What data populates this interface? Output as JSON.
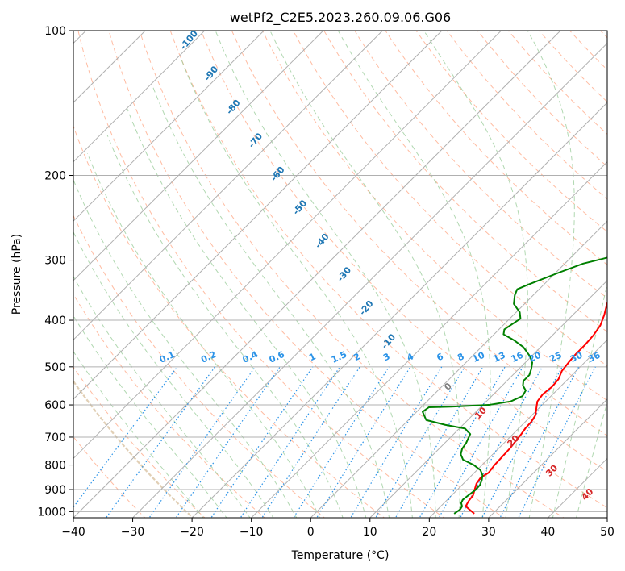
{
  "chart_data": {
    "type": "line",
    "chart_kind": "skew-t log-p",
    "title": "wetPf2_C2E5.2023.260.09.06.G06",
    "xlabel": "Temperature (°C)",
    "ylabel": "Pressure (hPa)",
    "xlim": [
      -40,
      50
    ],
    "ylim": [
      1030,
      100
    ],
    "x_ticks": [
      -40,
      -30,
      -20,
      -10,
      0,
      10,
      20,
      30,
      40,
      50
    ],
    "x_tick_labels": [
      "−40",
      "−30",
      "−20",
      "−10",
      "0",
      "10",
      "20",
      "30",
      "40",
      "50"
    ],
    "y_ticks": [
      100,
      200,
      300,
      400,
      500,
      600,
      700,
      800,
      900,
      1000
    ],
    "y_tick_labels": [
      "100",
      "200",
      "300",
      "400",
      "500",
      "600",
      "700",
      "800",
      "900",
      "1000"
    ],
    "grid": true,
    "colors": {
      "temperature": "#ff0000",
      "dewpoint": "#008000",
      "isotherm": "#b0b0b0",
      "dry_adiabat": "#ffa07a",
      "moist_adiabat": "#90c890",
      "mixing_ratio": "#2b93e8",
      "thick_adiabat": "#d9c3a3"
    },
    "series": [
      {
        "name": "Temperature",
        "points": [
          [
            26.9,
            1010
          ],
          [
            24.2,
            975
          ],
          [
            23.8,
            950
          ],
          [
            23.6,
            925
          ],
          [
            22.9,
            900
          ],
          [
            22.2,
            875
          ],
          [
            21.9,
            850
          ],
          [
            22.4,
            830
          ],
          [
            22.1,
            800
          ],
          [
            22.0,
            770
          ],
          [
            21.9,
            740
          ],
          [
            21.6,
            710
          ],
          [
            21.4,
            690
          ],
          [
            21.1,
            670
          ],
          [
            21.0,
            650
          ],
          [
            20.6,
            630
          ],
          [
            19.6,
            610
          ],
          [
            18.6,
            590
          ],
          [
            18.3,
            570
          ],
          [
            18.6,
            550
          ],
          [
            18.4,
            530
          ],
          [
            17.6,
            510
          ],
          [
            17.3,
            490
          ],
          [
            17.1,
            470
          ],
          [
            17.1,
            450
          ],
          [
            16.9,
            430
          ],
          [
            16.4,
            410
          ],
          [
            15.3,
            390
          ],
          [
            13.9,
            370
          ],
          [
            12.7,
            350
          ],
          [
            11.3,
            330
          ],
          [
            10.2,
            310
          ],
          [
            8.4,
            290
          ],
          [
            6.6,
            270
          ],
          [
            4.2,
            250
          ],
          [
            2.1,
            230
          ],
          [
            0.2,
            215
          ],
          [
            -1.8,
            200
          ],
          [
            -2.1,
            192
          ],
          [
            -1.4,
            185
          ],
          [
            -0.8,
            175
          ],
          [
            -1.3,
            165
          ],
          [
            -2.2,
            155
          ],
          [
            -3.2,
            145
          ],
          [
            -4.3,
            135
          ],
          [
            -5.6,
            128
          ],
          [
            -6.8,
            122
          ],
          [
            -7.6,
            116
          ],
          [
            -7.9,
            110
          ],
          [
            -7.6,
            105
          ],
          [
            -6.3,
            100
          ]
        ]
      },
      {
        "name": "Dewpoint",
        "points": [
          [
            23.5,
            1010
          ],
          [
            23.8,
            990
          ],
          [
            23.6,
            975
          ],
          [
            22.9,
            960
          ],
          [
            22.6,
            945
          ],
          [
            22.8,
            925
          ],
          [
            23.1,
            900
          ],
          [
            23.0,
            880
          ],
          [
            22.5,
            860
          ],
          [
            21.8,
            840
          ],
          [
            20.6,
            820
          ],
          [
            18.6,
            800
          ],
          [
            15.9,
            780
          ],
          [
            14.6,
            760
          ],
          [
            13.9,
            740
          ],
          [
            13.6,
            720
          ],
          [
            13.2,
            705
          ],
          [
            12.8,
            690
          ],
          [
            11.0,
            672
          ],
          [
            7.0,
            660
          ],
          [
            3.0,
            645
          ],
          [
            1.0,
            620
          ],
          [
            1.3,
            607
          ],
          [
            5.0,
            605
          ],
          [
            11.0,
            600
          ],
          [
            14.1,
            590
          ],
          [
            15.2,
            575
          ],
          [
            14.8,
            560
          ],
          [
            13.5,
            547
          ],
          [
            12.8,
            535
          ],
          [
            12.8,
            520
          ],
          [
            12.1,
            505
          ],
          [
            11.2,
            490
          ],
          [
            9.7,
            475
          ],
          [
            7.1,
            455
          ],
          [
            4.3,
            440
          ],
          [
            1.6,
            428
          ],
          [
            0.9,
            418
          ],
          [
            1.3,
            408
          ],
          [
            1.8,
            397
          ],
          [
            0.6,
            385
          ],
          [
            -1.8,
            370
          ],
          [
            -3.1,
            355
          ],
          [
            -3.7,
            345
          ],
          [
            -2.6,
            337
          ],
          [
            -1.1,
            328
          ],
          [
            0.6,
            318
          ],
          [
            3.1,
            305
          ],
          [
            5.6,
            298
          ],
          [
            7.6,
            292
          ],
          [
            8.1,
            285
          ],
          [
            8.1,
            275
          ],
          [
            7.9,
            262
          ],
          [
            7.9,
            247
          ],
          [
            6.3,
            235
          ],
          [
            3.6,
            225
          ],
          [
            0.6,
            210
          ],
          [
            -1.8,
            198
          ],
          [
            -4.0,
            188
          ],
          [
            -8.5,
            180
          ],
          [
            -11.0,
            175
          ],
          [
            -11.6,
            168
          ],
          [
            -10.5,
            160
          ],
          [
            -10.1,
            150
          ],
          [
            -11.2,
            140
          ],
          [
            -12.4,
            130
          ],
          [
            -12.8,
            120
          ],
          [
            -13.7,
            113
          ],
          [
            -14.4,
            107
          ],
          [
            -14.1,
            102
          ],
          [
            -13.3,
            100
          ]
        ]
      }
    ],
    "annotations": {
      "dry_adiabat_labels": [
        {
          "text": "-100",
          "temp": -100
        },
        {
          "text": "-90",
          "temp": -90
        },
        {
          "text": "-80",
          "temp": -80
        },
        {
          "text": "-70",
          "temp": -70
        },
        {
          "text": "-60",
          "temp": -60
        },
        {
          "text": "-50",
          "temp": -50
        },
        {
          "text": "-40",
          "temp": -40
        },
        {
          "text": "-30",
          "temp": -30
        },
        {
          "text": "-20",
          "temp": -20
        },
        {
          "text": "-10",
          "temp": -10
        }
      ],
      "mixing_ratio_labels": [
        {
          "text": "0.1",
          "temp": -24
        },
        {
          "text": "0.2",
          "temp": -17
        },
        {
          "text": "0.4",
          "temp": -10
        },
        {
          "text": "0.6",
          "temp": -5.5
        },
        {
          "text": "1",
          "temp": 0.5
        },
        {
          "text": "1.5",
          "temp": 5
        },
        {
          "text": "2",
          "temp": 8
        },
        {
          "text": "3",
          "temp": 13
        },
        {
          "text": "4",
          "temp": 17
        },
        {
          "text": "6",
          "temp": 22
        },
        {
          "text": "8",
          "temp": 25.5
        },
        {
          "text": "10",
          "temp": 28.5
        },
        {
          "text": "13",
          "temp": 32
        },
        {
          "text": "16",
          "temp": 35
        },
        {
          "text": "20",
          "temp": 38
        },
        {
          "text": "25",
          "temp": 41.5
        },
        {
          "text": "30",
          "temp": 45
        },
        {
          "text": "36",
          "temp": 48
        }
      ],
      "moist_adiabat_labels": [
        {
          "text": "0",
          "temp": 23.5,
          "pressure": 555
        },
        {
          "text": "10",
          "temp": 29,
          "pressure": 630
        },
        {
          "text": "20",
          "temp": 34.5,
          "pressure": 720
        },
        {
          "text": "30",
          "temp": 41,
          "pressure": 830
        },
        {
          "text": "40",
          "temp": 47,
          "pressure": 930
        }
      ]
    }
  }
}
